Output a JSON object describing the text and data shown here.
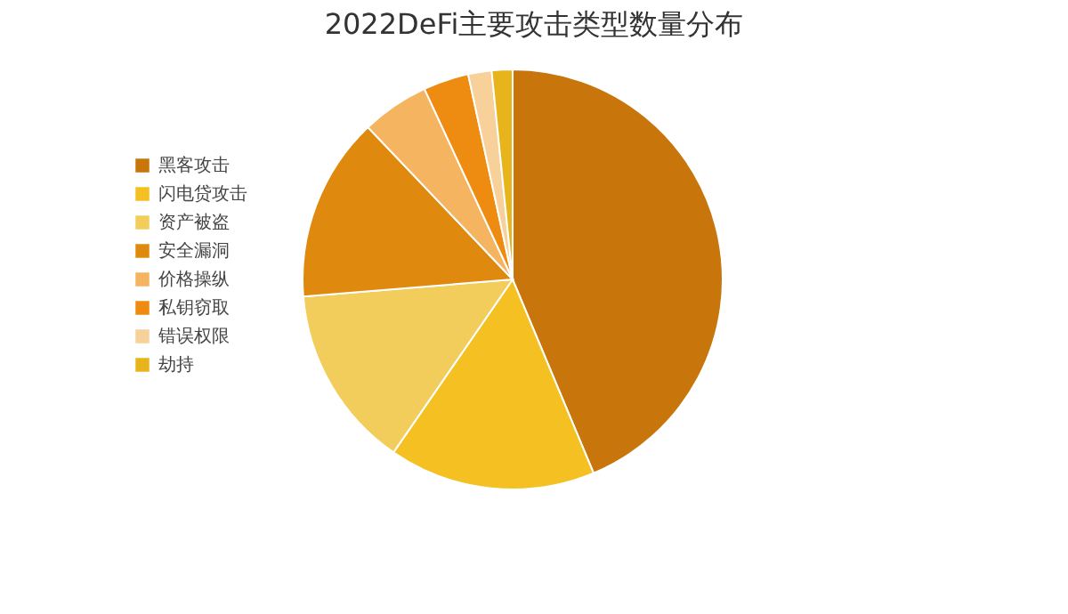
{
  "chart_data": {
    "type": "pie",
    "title": "2022DeFi主要攻击类型数量分布",
    "categories": [
      "黑客攻击",
      "闪电贷攻击",
      "资产被盗",
      "安全漏洞",
      "价格操纵",
      "私钥窃取",
      "错误权限",
      "劫持"
    ],
    "values": [
      43.7,
      15.9,
      14.1,
      14.2,
      5.2,
      3.5,
      1.8,
      1.6
    ],
    "colors": [
      "#c8760c",
      "#f4c022",
      "#f2cd5c",
      "#e0890f",
      "#f5b460",
      "#ee8c12",
      "#f7d09a",
      "#e8b41c"
    ],
    "legend": "left"
  }
}
